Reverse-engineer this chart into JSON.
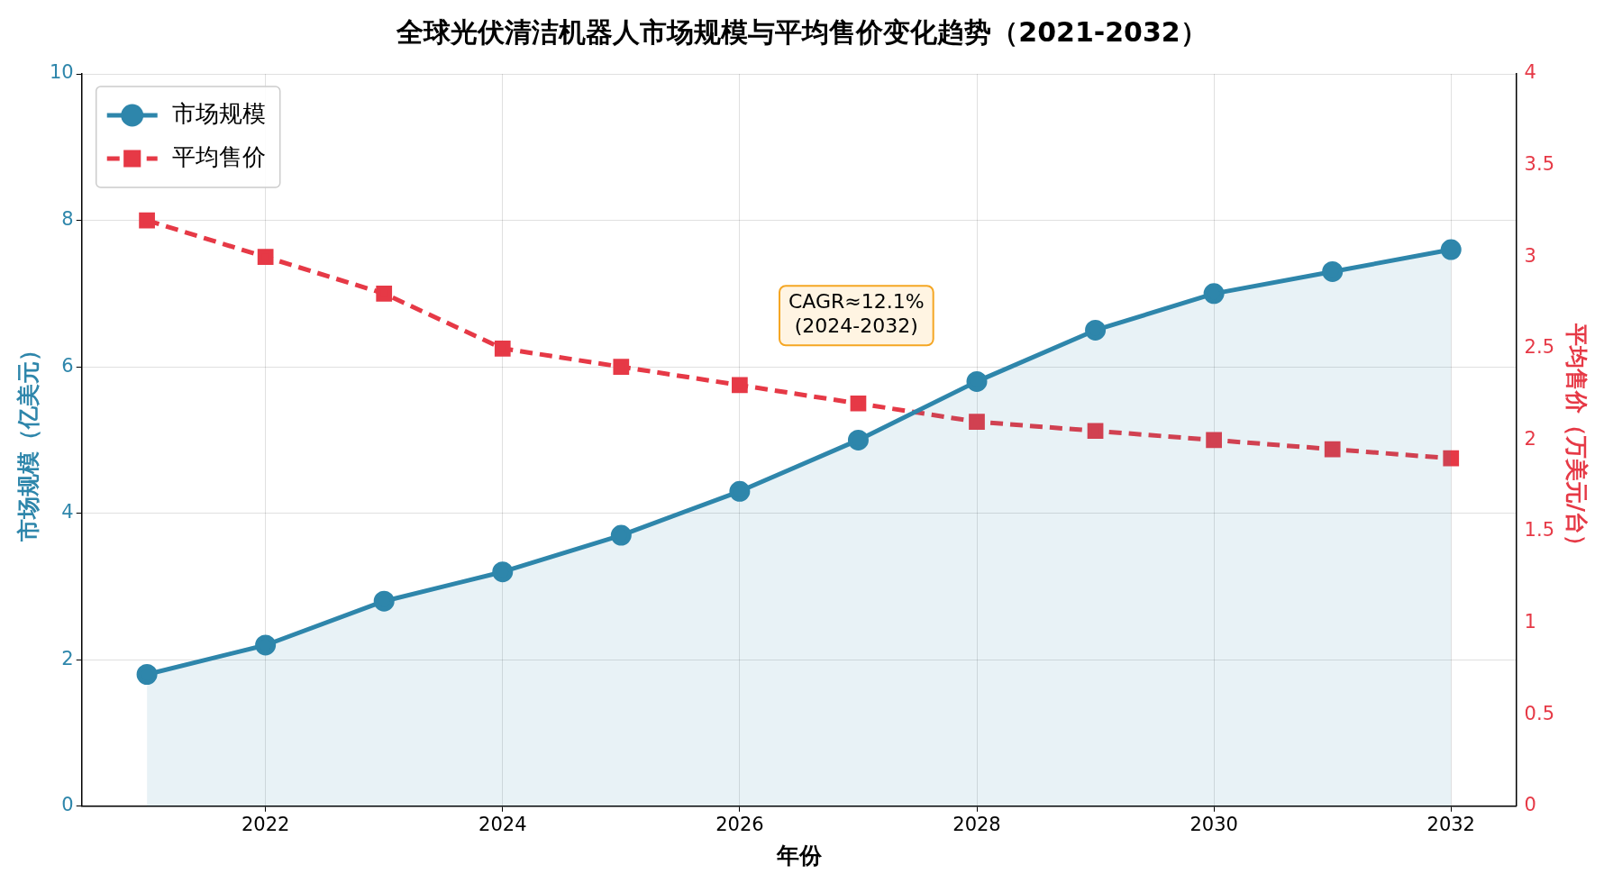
{
  "chart_data": {
    "type": "line",
    "title": "全球光伏清洁机器人市场规模与平均售价变化趋势（2021-2032）",
    "xlabel": "年份",
    "ylabel": "市场规模（亿美元）",
    "y2label": "平均售价（万美元/台）",
    "x": [
      2021,
      2022,
      2023,
      2024,
      2025,
      2026,
      2027,
      2028,
      2029,
      2030,
      2031,
      2032
    ],
    "series": [
      {
        "name": "市场规模",
        "type": "area",
        "color": "#2e86ab",
        "marker": "circle",
        "line_style": "solid",
        "values": [
          1.8,
          2.2,
          2.8,
          3.2,
          3.7,
          4.3,
          5.0,
          5.8,
          6.5,
          7.0,
          7.3,
          7.6
        ]
      },
      {
        "name": "平均售价",
        "axis": "y2",
        "color": "#e63946",
        "marker": "square",
        "line_style": "dashed",
        "values": [
          3.2,
          3.0,
          2.8,
          2.5,
          2.4,
          2.3,
          2.2,
          2.1,
          2.05,
          2.0,
          1.95,
          1.9
        ]
      }
    ],
    "xlim": [
      2020.45,
      2032.55
    ],
    "xticks": [
      2022,
      2024,
      2026,
      2028,
      2030,
      2032
    ],
    "ylim": [
      0,
      10
    ],
    "yticks": [
      0,
      2,
      4,
      6,
      8,
      10
    ],
    "y2lim": [
      0,
      4
    ],
    "y2ticks": [
      0,
      0.5,
      1,
      1.5,
      2,
      2.5,
      3,
      3.5,
      4
    ],
    "grid": true,
    "legend": "top left",
    "annotations": [
      "CAGR≈12.1%\n(2024-2032)"
    ]
  }
}
